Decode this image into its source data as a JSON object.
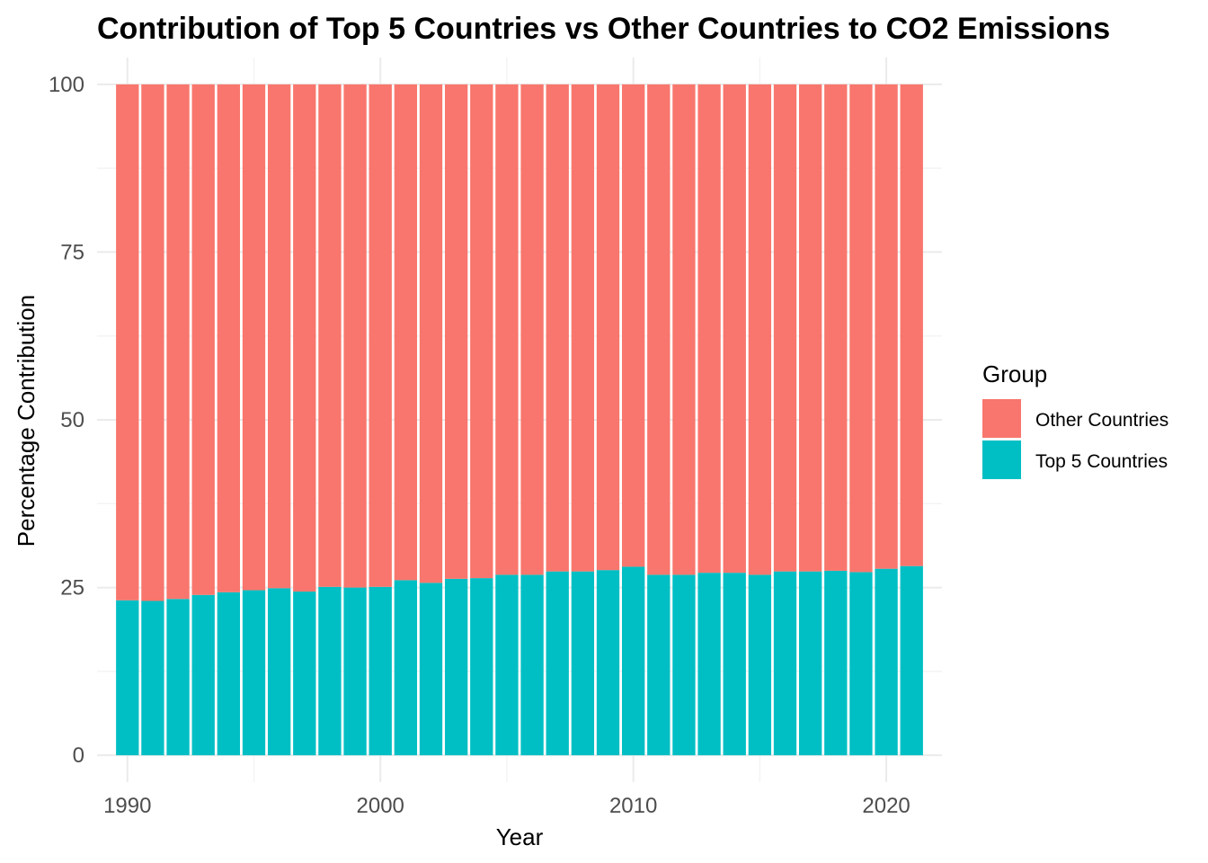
{
  "chart_data": {
    "type": "bar",
    "stacked": true,
    "title": "Contribution of Top 5 Countries vs Other Countries to CO2 Emissions",
    "xlabel": "Year",
    "ylabel": "Percentage Contribution",
    "xlim": [
      1988.8,
      2022.2
    ],
    "ylim": [
      -4,
      104
    ],
    "x_ticks": [
      1990,
      2000,
      2010,
      2020
    ],
    "y_ticks": [
      0,
      25,
      50,
      75,
      100
    ],
    "grid": true,
    "legend": {
      "title": "Group",
      "position": "right",
      "entries": [
        {
          "label": "Other Countries",
          "color": "#F8766D"
        },
        {
          "label": "Top 5 Countries",
          "color": "#00BFC4"
        }
      ]
    },
    "x": [
      1990,
      1991,
      1992,
      1993,
      1994,
      1995,
      1996,
      1997,
      1998,
      1999,
      2000,
      2001,
      2002,
      2003,
      2004,
      2005,
      2006,
      2007,
      2008,
      2009,
      2010,
      2011,
      2012,
      2013,
      2014,
      2015,
      2016,
      2017,
      2018,
      2019,
      2020,
      2021
    ],
    "series": [
      {
        "name": "Top 5 Countries",
        "color": "#00BFC4",
        "values": [
          23.1,
          23.0,
          23.3,
          23.9,
          24.3,
          24.6,
          24.9,
          24.4,
          25.1,
          25.0,
          25.1,
          26.1,
          25.7,
          26.3,
          26.4,
          26.9,
          26.9,
          27.4,
          27.4,
          27.6,
          28.1,
          26.9,
          26.9,
          27.2,
          27.2,
          26.9,
          27.4,
          27.4,
          27.5,
          27.3,
          27.8,
          28.2
        ]
      },
      {
        "name": "Other Countries",
        "color": "#F8766D",
        "values": [
          76.9,
          77.0,
          76.7,
          76.1,
          75.7,
          75.4,
          75.1,
          75.6,
          74.9,
          75.0,
          74.9,
          73.9,
          74.3,
          73.7,
          73.6,
          73.1,
          73.1,
          72.6,
          72.6,
          72.4,
          71.9,
          73.1,
          73.1,
          72.8,
          72.8,
          73.1,
          72.6,
          72.6,
          72.5,
          72.7,
          72.2,
          71.8
        ]
      }
    ]
  }
}
